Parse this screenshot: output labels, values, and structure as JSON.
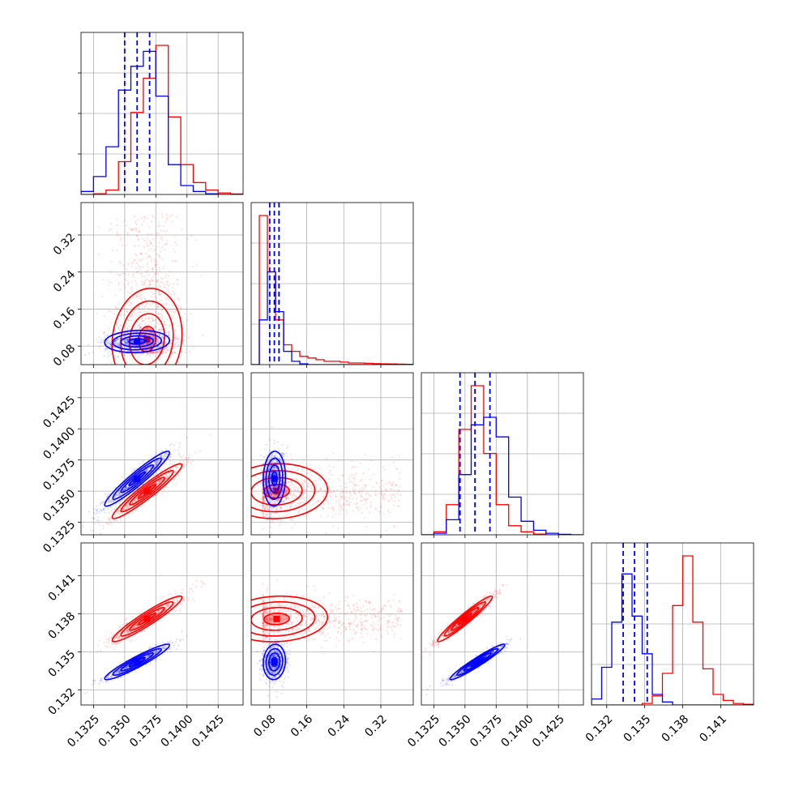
{
  "colors": {
    "series_a": "#ff0000",
    "series_b": "#0000ff",
    "grid": "#b0b0b0"
  },
  "chart_data": {
    "type": "corner",
    "title": "",
    "legend": "none",
    "grid": true,
    "dimensions": [
      {
        "range": [
          0.1315,
          0.1445
        ],
        "ticks": [
          "0.1325",
          "0.1350",
          "0.1375",
          "0.1400",
          "0.1425"
        ],
        "tick_values": [
          0.1325,
          0.135,
          0.1375,
          0.14,
          0.1425
        ]
      },
      {
        "range": [
          0.04,
          0.39
        ],
        "ticks": [
          "0.08",
          "0.16",
          "0.24",
          "0.32"
        ],
        "tick_values": [
          0.08,
          0.16,
          0.24,
          0.32
        ]
      },
      {
        "range": [
          0.1315,
          0.1445
        ],
        "ticks": [
          "0.1325",
          "0.1350",
          "0.1375",
          "0.1400",
          "0.1425"
        ],
        "tick_values": [
          0.1325,
          0.135,
          0.1375,
          0.14,
          0.1425
        ]
      },
      {
        "range": [
          0.1308,
          0.1436
        ],
        "ticks": [
          "0.132",
          "0.135",
          "0.138",
          "0.141"
        ],
        "tick_values": [
          0.132,
          0.135,
          0.138,
          0.141
        ]
      }
    ],
    "series": [
      {
        "color": "#ff0000",
        "mean": [
          0.1368,
          0.095,
          0.135,
          0.1376
        ],
        "sd": [
          0.0014,
          0.055,
          0.0011,
          0.0009
        ]
      },
      {
        "color": "#0000ff",
        "mean": [
          0.136,
          0.09,
          0.136,
          0.1342
        ],
        "sd": [
          0.0013,
          0.012,
          0.0011,
          0.0007
        ]
      }
    ],
    "quantile_lines": [
      [
        0.135,
        0.136,
        0.137
      ],
      [
        0.08,
        0.09,
        0.1
      ],
      [
        0.1346,
        0.1358,
        0.137
      ],
      [
        0.1333,
        0.1342,
        0.1352
      ]
    ],
    "histograms": [
      {
        "bins": [
          0.1315,
          0.1325,
          0.1335,
          0.1345,
          0.1355,
          0.1365,
          0.1375,
          0.1385,
          0.1395,
          0.1405,
          0.1415,
          0.1425,
          0.1435,
          0.1445
        ],
        "series": [
          {
            "color": "#ff0000",
            "values": [
              0,
              0.005,
              0.03,
              0.22,
              0.55,
              0.78,
              1.0,
              0.52,
              0.2,
              0.08,
              0.03,
              0.01,
              0.003
            ]
          },
          {
            "color": "#0000ff",
            "values": [
              0.02,
              0.12,
              0.32,
              0.7,
              0.86,
              0.96,
              0.66,
              0.2,
              0.06,
              0.02,
              0.005,
              0,
              0
            ]
          }
        ]
      },
      {
        "bins": [
          0.04,
          0.0575,
          0.075,
          0.0925,
          0.11,
          0.1275,
          0.145,
          0.1625,
          0.18,
          0.1975,
          0.215,
          0.2325,
          0.25,
          0.2675,
          0.285,
          0.3025,
          0.32,
          0.3375,
          0.355,
          0.3725,
          0.39
        ],
        "series": [
          {
            "color": "#ff0000",
            "values": [
              0.0,
              0.9,
              0.56,
              0.27,
              0.12,
              0.08,
              0.05,
              0.04,
              0.03,
              0.02,
              0.02,
              0.015,
              0.01,
              0.01,
              0.008,
              0.006,
              0.005,
              0.004,
              0.003,
              0.002
            ]
          },
          {
            "color": "#0000ff",
            "values": [
              0.0,
              0.27,
              0.56,
              0.32,
              0.08,
              0.02,
              0.005,
              0,
              0,
              0,
              0,
              0,
              0,
              0,
              0,
              0,
              0,
              0,
              0,
              0
            ]
          }
        ]
      },
      {
        "bins": [
          0.1315,
          0.1325,
          0.1335,
          0.1345,
          0.1355,
          0.1365,
          0.1375,
          0.1385,
          0.1395,
          0.1405,
          0.1415,
          0.1425,
          0.1435,
          0.1445
        ],
        "series": [
          {
            "color": "#ff0000",
            "values": [
              0,
              0.02,
              0.2,
              0.7,
              0.99,
              0.54,
              0.2,
              0.06,
              0.02,
              0.005,
              0,
              0,
              0
            ]
          },
          {
            "color": "#0000ff",
            "values": [
              0,
              0.01,
              0.1,
              0.4,
              0.73,
              0.78,
              0.65,
              0.25,
              0.09,
              0.03,
              0.01,
              0.003,
              0
            ]
          }
        ]
      },
      {
        "bins": [
          0.1308,
          0.1316,
          0.1324,
          0.1332,
          0.134,
          0.1348,
          0.1356,
          0.1364,
          0.1372,
          0.138,
          0.1388,
          0.1396,
          0.1404,
          0.1412,
          0.142,
          0.1428,
          0.1436
        ],
        "series": [
          {
            "color": "#ff0000",
            "values": [
              0,
              0,
              0,
              0,
              0,
              0.01,
              0.06,
              0.21,
              0.66,
              0.99,
              0.55,
              0.24,
              0.07,
              0.03,
              0.01,
              0.005
            ]
          },
          {
            "color": "#0000ff",
            "values": [
              0.04,
              0.25,
              0.55,
              0.87,
              0.59,
              0.34,
              0.07,
              0.02,
              0,
              0,
              0,
              0,
              0,
              0,
              0,
              0
            ]
          }
        ]
      }
    ],
    "correlations": [
      [
        1.0,
        0.1,
        0.95,
        0.94
      ],
      [
        0.1,
        1.0,
        0.05,
        0.08
      ],
      [
        0.95,
        0.05,
        1.0,
        0.96
      ],
      [
        0.94,
        0.08,
        0.96,
        1.0
      ]
    ]
  }
}
